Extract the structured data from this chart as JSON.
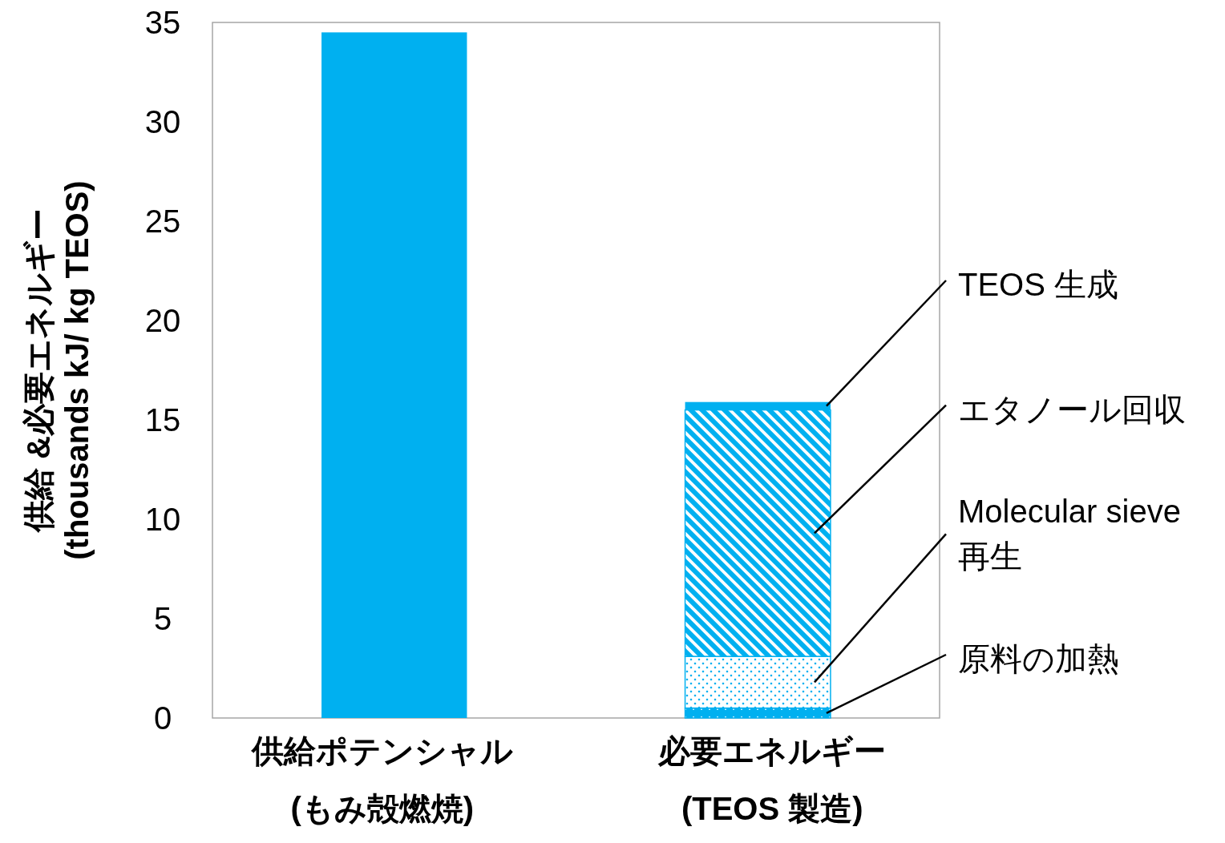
{
  "chart_data": {
    "type": "bar",
    "stacked": true,
    "ylabel": "供給 &必要エネルギー\n(thousands kJ/ kg TEOS)",
    "categories": [
      "供給ポテンシャル\n(もみ殻燃焼)",
      "必要エネルギー\n(TEOS 製造)"
    ],
    "series": [
      {
        "color": "#00b0f0",
        "values": [
          34.5,
          null
        ]
      },
      {
        "name": "原料の加熱",
        "color": "#00b0f0",
        "values": [
          null,
          0.5
        ]
      },
      {
        "name": "Molecular sieve\n再生",
        "color": "#00b0f0",
        "values": [
          null,
          2.6
        ]
      },
      {
        "name": "エタノール回収",
        "color": "#00b0f0",
        "values": [
          null,
          12.4
        ]
      },
      {
        "name": "TEOS 生成",
        "color": "#00b0f0",
        "values": [
          null,
          0.4
        ]
      }
    ],
    "ylim": [
      0,
      35
    ],
    "yticks": [
      0,
      5,
      10,
      15,
      20,
      25,
      30,
      35
    ],
    "grid": false,
    "legend": false
  }
}
